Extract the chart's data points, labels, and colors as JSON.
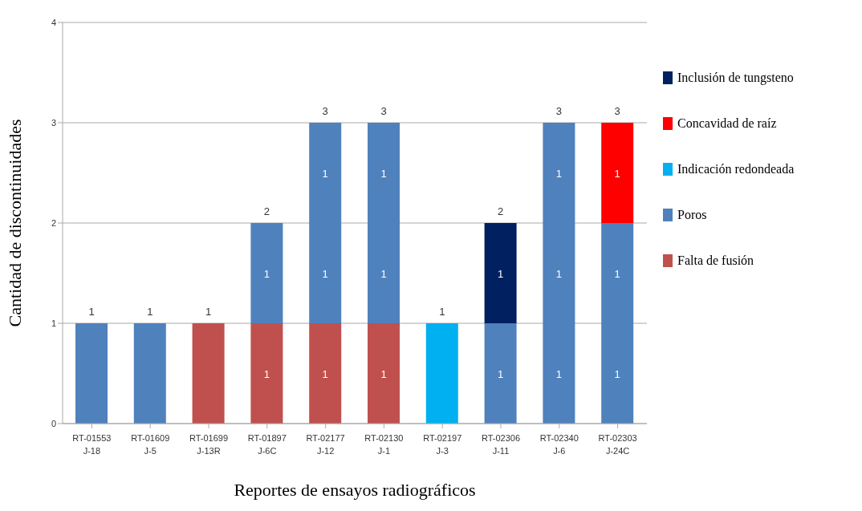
{
  "chart_data": {
    "type": "bar",
    "stacked": true,
    "xlabel": "Reportes de ensayos radiográficos",
    "ylabel": "Cantidad de discontinuidades",
    "categories": [
      "RT-01553\nJ-18",
      "RT-01609\nJ-5",
      "RT-01699\nJ-13R",
      "RT-01897\nJ-6C",
      "RT-02177\nJ-12",
      "RT-02130\nJ-1",
      "RT-02197\nJ-3",
      "RT-02306\nJ-11",
      "RT-02340\nJ-6",
      "RT-02303\nJ-24C"
    ],
    "series": [
      {
        "name": "Falta de fusión",
        "color": "#c0504d",
        "values": [
          null,
          null,
          1,
          1,
          1,
          1,
          null,
          null,
          null,
          null
        ],
        "value_labels": [
          null,
          null,
          null,
          "1",
          "1",
          "1",
          null,
          null,
          null,
          null
        ]
      },
      {
        "name": "Poros",
        "color": "#4f81bd",
        "values": [
          1,
          1,
          null,
          1,
          1,
          1,
          null,
          1,
          1,
          1
        ],
        "value_labels": [
          null,
          null,
          null,
          "1",
          "1",
          "1",
          null,
          "1",
          "1",
          "1"
        ]
      },
      {
        "name": "Indicación redondeada",
        "color": "#00b0f0",
        "values": [
          null,
          null,
          null,
          null,
          null,
          null,
          1,
          null,
          null,
          null
        ],
        "value_labels": [
          null,
          null,
          null,
          null,
          null,
          null,
          null,
          null,
          null,
          null
        ]
      },
      {
        "color": "#4f81bd",
        "values": [
          null,
          null,
          null,
          null,
          1,
          1,
          null,
          null,
          1,
          1
        ],
        "value_labels": [
          null,
          null,
          null,
          null,
          "1",
          "1",
          null,
          null,
          "1",
          "1"
        ]
      },
      {
        "color": "#4f81bd",
        "values": [
          null,
          null,
          null,
          null,
          null,
          null,
          null,
          null,
          1,
          null
        ],
        "value_labels": [
          null,
          null,
          null,
          null,
          null,
          null,
          null,
          null,
          "1",
          null
        ]
      },
      {
        "name": "Concavidad de raíz",
        "color": "#ff0000",
        "values": [
          null,
          null,
          null,
          null,
          null,
          null,
          null,
          null,
          null,
          1
        ],
        "value_labels": [
          null,
          null,
          null,
          null,
          null,
          null,
          null,
          null,
          null,
          "1"
        ]
      },
      {
        "name": "Inclusión de tungsteno",
        "color": "#002060",
        "values": [
          null,
          null,
          null,
          null,
          null,
          null,
          null,
          1,
          null,
          null
        ],
        "value_labels": [
          null,
          null,
          null,
          null,
          null,
          null,
          null,
          "1",
          null,
          null
        ]
      }
    ],
    "totals": [
      "1",
      "1",
      "1",
      "2",
      "3",
      "3",
      "1",
      "2",
      "3",
      "3"
    ],
    "ylim": [
      0,
      4
    ],
    "yticks": [
      0,
      1,
      2,
      3,
      4
    ],
    "grid": "y",
    "legend": "right"
  }
}
